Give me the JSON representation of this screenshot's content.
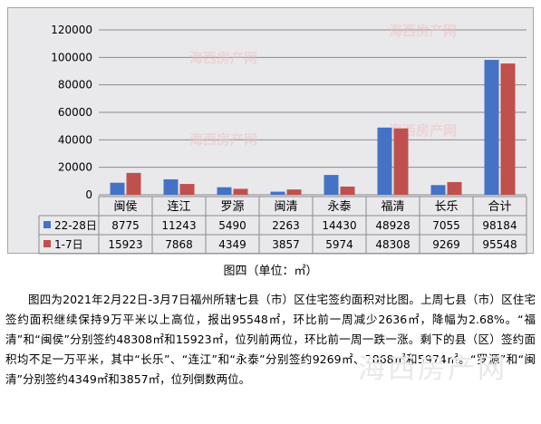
{
  "chart_data": {
    "type": "bar",
    "categories": [
      "闽侯",
      "连江",
      "罗源",
      "闽清",
      "永泰",
      "福清",
      "长乐",
      "合计"
    ],
    "series": [
      {
        "name": "22-28日",
        "values": [
          8775,
          11243,
          5490,
          2263,
          14430,
          48928,
          7055,
          98184
        ],
        "color": "#4472c4"
      },
      {
        "name": "1-7日",
        "values": [
          15923,
          7868,
          4349,
          3857,
          5974,
          48308,
          9269,
          95548
        ],
        "color": "#c0504d"
      }
    ],
    "yticks": [
      "120000",
      "100000",
      "80000",
      "60000",
      "40000",
      "20000",
      "0"
    ],
    "ylim": [
      0,
      120000
    ],
    "grid": true,
    "legend": "data table",
    "chart_watermark": "海西房产网"
  },
  "caption": "图四（单位：㎡）",
  "body_text": "图四为2021年2月22日-3月7日福州所辖七县（市）区住宅签约面积对比图。上周七县（市）区住宅签约面积继续保持9万平米以上高位，报出95548㎡，环比前一周减少2636㎡，降幅为2.68%。“福清”和“闽侯”分别签约48308㎡和15923㎡，位列前两位，环比前一周一跌一涨。剩下的县（区）签约面积均不足一万平米，其中“长乐”、“连江”和“永泰”分别签约9269㎡、7868㎡和5974㎡。“罗源”和“闽清”分别签约4349㎡和3857㎡，位列倒数两位。",
  "page_watermark": "海西房产网"
}
